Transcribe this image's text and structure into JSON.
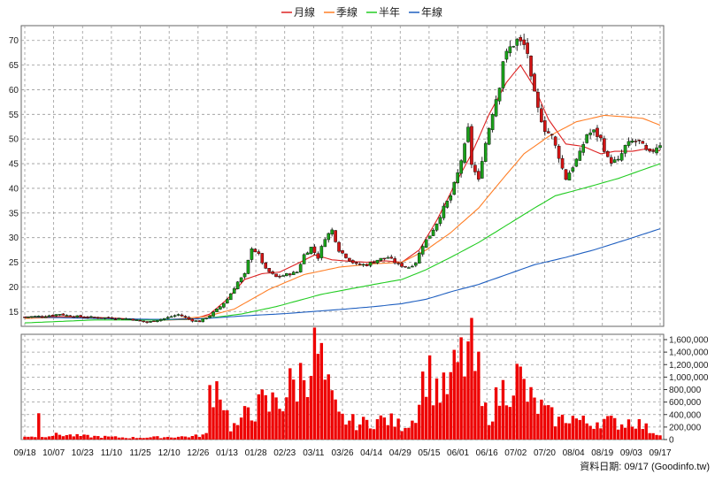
{
  "chart_data": [
    {
      "type": "candlestick",
      "title": "",
      "legend_position": "top-center",
      "grid": true,
      "ylim": [
        12,
        73
      ],
      "y_ticks": [
        15,
        20,
        25,
        30,
        35,
        40,
        45,
        50,
        55,
        60,
        65,
        70
      ],
      "x_ticks": [
        "09/18",
        "10/07",
        "10/23",
        "11/10",
        "11/25",
        "12/10",
        "12/26",
        "01/13",
        "01/28",
        "02/23",
        "03/11",
        "03/26",
        "04/14",
        "04/29",
        "05/15",
        "06/01",
        "06/16",
        "07/02",
        "07/20",
        "08/04",
        "08/19",
        "09/03",
        "09/17"
      ],
      "legend": [
        {
          "label": "月線",
          "color": "#dd2222"
        },
        {
          "label": "季線",
          "color": "#ff7f27"
        },
        {
          "label": "半年",
          "color": "#22cc22"
        },
        {
          "label": "年線",
          "color": "#1f5fc0"
        }
      ],
      "series": [
        {
          "name": "月線",
          "color": "#dd2222",
          "anchors": [
            [
              0,
              13.9
            ],
            [
              8,
              14.0
            ],
            [
              16,
              13.9
            ],
            [
              25,
              13.7
            ],
            [
              33,
              13.4
            ],
            [
              41,
              13.3
            ],
            [
              48,
              13.4
            ],
            [
              53,
              14.5
            ],
            [
              58,
              17.5
            ],
            [
              63,
              21.5
            ],
            [
              68,
              22.7
            ],
            [
              73,
              23.0
            ],
            [
              78,
              24.7
            ],
            [
              83,
              26.5
            ],
            [
              88,
              25.5
            ],
            [
              93,
              25.2
            ],
            [
              98,
              25.0
            ],
            [
              103,
              25.3
            ],
            [
              108,
              25.0
            ],
            [
              113,
              27.5
            ],
            [
              118,
              33.5
            ],
            [
              123,
              40.5
            ],
            [
              128,
              47.0
            ],
            [
              133,
              55.0
            ],
            [
              138,
              61.5
            ],
            [
              142,
              65.0
            ],
            [
              146,
              60.5
            ],
            [
              150,
              54.0
            ],
            [
              155,
              49.0
            ],
            [
              160,
              48.5
            ],
            [
              165,
              47.0
            ],
            [
              169,
              47.5
            ],
            [
              174,
              47.5
            ],
            [
              178,
              48.0
            ],
            [
              182,
              47.6
            ]
          ]
        },
        {
          "name": "季線",
          "color": "#ff7f27",
          "anchors": [
            [
              0,
              13.6
            ],
            [
              10,
              13.8
            ],
            [
              25,
              13.6
            ],
            [
              40,
              13.3
            ],
            [
              52,
              14.0
            ],
            [
              60,
              15.5
            ],
            [
              70,
              19.5
            ],
            [
              80,
              22.5
            ],
            [
              90,
              24.0
            ],
            [
              100,
              24.7
            ],
            [
              108,
              25.0
            ],
            [
              115,
              27.5
            ],
            [
              122,
              31.0
            ],
            [
              130,
              36.0
            ],
            [
              137,
              42.0
            ],
            [
              143,
              47.0
            ],
            [
              150,
              50.5
            ],
            [
              158,
              53.5
            ],
            [
              166,
              54.8
            ],
            [
              172,
              54.5
            ],
            [
              177,
              54.2
            ],
            [
              182,
              52.8
            ]
          ]
        },
        {
          "name": "半年",
          "color": "#22cc22",
          "anchors": [
            [
              0,
              12.7
            ],
            [
              20,
              13.3
            ],
            [
              40,
              13.3
            ],
            [
              52,
              13.6
            ],
            [
              62,
              14.5
            ],
            [
              72,
              16.0
            ],
            [
              85,
              18.5
            ],
            [
              100,
              20.5
            ],
            [
              108,
              21.5
            ],
            [
              115,
              23.5
            ],
            [
              122,
              26.0
            ],
            [
              130,
              29.0
            ],
            [
              138,
              32.5
            ],
            [
              146,
              36.0
            ],
            [
              152,
              38.5
            ],
            [
              160,
              40.0
            ],
            [
              170,
              42.0
            ],
            [
              182,
              45.0
            ]
          ]
        },
        {
          "name": "年線",
          "color": "#1f5fc0",
          "anchors": [
            [
              0,
              13.9
            ],
            [
              20,
              13.6
            ],
            [
              40,
              13.4
            ],
            [
              52,
              13.6
            ],
            [
              62,
              14.1
            ],
            [
              75,
              14.6
            ],
            [
              90,
              15.4
            ],
            [
              100,
              16.0
            ],
            [
              108,
              16.6
            ],
            [
              115,
              17.5
            ],
            [
              122,
              19.0
            ],
            [
              130,
              20.5
            ],
            [
              138,
              22.5
            ],
            [
              146,
              24.5
            ],
            [
              155,
              26.0
            ],
            [
              163,
              27.5
            ],
            [
              172,
              29.5
            ],
            [
              182,
              31.8
            ]
          ]
        }
      ],
      "candle_anchors": [
        [
          0,
          13.9
        ],
        [
          6,
          14.1
        ],
        [
          10,
          14.5
        ],
        [
          12,
          14.2
        ],
        [
          15,
          14.0
        ],
        [
          20,
          13.8
        ],
        [
          25,
          13.7
        ],
        [
          30,
          13.5
        ],
        [
          35,
          12.8
        ],
        [
          40,
          13.6
        ],
        [
          44,
          14.4
        ],
        [
          48,
          13.2
        ],
        [
          50,
          13.0
        ],
        [
          53,
          14.2
        ],
        [
          56,
          16.0
        ],
        [
          58,
          17.5
        ],
        [
          61,
          21.0
        ],
        [
          63,
          22.5
        ],
        [
          65,
          28.0
        ],
        [
          67,
          26.5
        ],
        [
          69,
          23.5
        ],
        [
          72,
          22.0
        ],
        [
          75,
          22.5
        ],
        [
          78,
          23.0
        ],
        [
          80,
          26.5
        ],
        [
          82,
          28.0
        ],
        [
          84,
          26.0
        ],
        [
          86,
          30.0
        ],
        [
          88,
          31.5
        ],
        [
          90,
          27.5
        ],
        [
          93,
          25.5
        ],
        [
          95,
          24.5
        ],
        [
          98,
          24.5
        ],
        [
          101,
          25.5
        ],
        [
          104,
          26.0
        ],
        [
          107,
          24.5
        ],
        [
          110,
          24.0
        ],
        [
          112,
          25.0
        ],
        [
          114,
          28.5
        ],
        [
          116,
          30.5
        ],
        [
          118,
          33.0
        ],
        [
          120,
          36.0
        ],
        [
          122,
          38.5
        ],
        [
          124,
          43.0
        ],
        [
          126,
          48.5
        ],
        [
          127,
          52.0
        ],
        [
          128,
          45.0
        ],
        [
          130,
          41.5
        ],
        [
          131,
          46.0
        ],
        [
          134,
          55.5
        ],
        [
          136,
          61.0
        ],
        [
          137,
          66.0
        ],
        [
          139,
          68.5
        ],
        [
          141,
          70.0
        ],
        [
          143,
          69.0
        ],
        [
          144,
          67.5
        ],
        [
          145,
          62.0
        ],
        [
          147,
          56.0
        ],
        [
          149,
          52.0
        ],
        [
          151,
          50.5
        ],
        [
          153,
          46.5
        ],
        [
          154,
          44.0
        ],
        [
          155,
          42.0
        ],
        [
          157,
          44.5
        ],
        [
          159,
          47.0
        ],
        [
          161,
          51.0
        ],
        [
          163,
          51.5
        ],
        [
          165,
          50.0
        ],
        [
          167,
          46.0
        ],
        [
          168,
          45.5
        ],
        [
          170,
          45.5
        ],
        [
          172,
          48.5
        ],
        [
          174,
          49.5
        ],
        [
          176,
          49.5
        ],
        [
          178,
          47.5
        ],
        [
          179,
          47.0
        ],
        [
          181,
          48.5
        ],
        [
          182,
          49.0
        ]
      ],
      "bar_color_up": "#1aa01a",
      "bar_color_down": "#d41414",
      "sample_days": 183
    },
    {
      "type": "bar",
      "title": "",
      "color": "#ee0000",
      "ylim": [
        0,
        1600000
      ],
      "y_ticks": [
        "0",
        "200,000",
        "400,000",
        "600,000",
        "800,000",
        "1,000,000",
        "1,200,000",
        "1,400,000",
        "1,600,000"
      ],
      "volume_anchors": [
        [
          0,
          60000
        ],
        [
          3,
          50000
        ],
        [
          4,
          380000
        ],
        [
          5,
          60000
        ],
        [
          10,
          80000
        ],
        [
          15,
          60000
        ],
        [
          20,
          50000
        ],
        [
          30,
          30000
        ],
        [
          40,
          40000
        ],
        [
          48,
          50000
        ],
        [
          52,
          80000
        ],
        [
          53,
          800000
        ],
        [
          54,
          900000
        ],
        [
          55,
          850000
        ],
        [
          56,
          950000
        ],
        [
          57,
          600000
        ],
        [
          59,
          200000
        ],
        [
          62,
          250000
        ],
        [
          64,
          550000
        ],
        [
          66,
          450000
        ],
        [
          68,
          600000
        ],
        [
          70,
          500000
        ],
        [
          72,
          700000
        ],
        [
          74,
          600000
        ],
        [
          76,
          850000
        ],
        [
          78,
          900000
        ],
        [
          80,
          1100000
        ],
        [
          82,
          1300000
        ],
        [
          84,
          1400000
        ],
        [
          85,
          1200000
        ],
        [
          86,
          900000
        ],
        [
          88,
          600000
        ],
        [
          90,
          350000
        ],
        [
          93,
          300000
        ],
        [
          96,
          250000
        ],
        [
          100,
          300000
        ],
        [
          104,
          320000
        ],
        [
          108,
          220000
        ],
        [
          111,
          300000
        ],
        [
          113,
          650000
        ],
        [
          115,
          1200000
        ],
        [
          116,
          1000000
        ],
        [
          118,
          850000
        ],
        [
          120,
          750000
        ],
        [
          122,
          900000
        ],
        [
          124,
          1200000
        ],
        [
          126,
          1300000
        ],
        [
          127,
          1450000
        ],
        [
          128,
          1350000
        ],
        [
          130,
          1000000
        ],
        [
          131,
          500000
        ],
        [
          133,
          400000
        ],
        [
          136,
          700000
        ],
        [
          138,
          850000
        ],
        [
          140,
          1000000
        ],
        [
          142,
          950000
        ],
        [
          144,
          700000
        ],
        [
          146,
          550000
        ],
        [
          148,
          500000
        ],
        [
          150,
          400000
        ],
        [
          153,
          300000
        ],
        [
          156,
          380000
        ],
        [
          159,
          300000
        ],
        [
          162,
          250000
        ],
        [
          165,
          320000
        ],
        [
          168,
          280000
        ],
        [
          171,
          250000
        ],
        [
          174,
          320000
        ],
        [
          177,
          220000
        ],
        [
          179,
          150000
        ],
        [
          181,
          100000
        ],
        [
          182,
          120000
        ]
      ]
    }
  ],
  "footer": {
    "text": "資料日期: 09/17  (Goodinfo.tw)"
  }
}
